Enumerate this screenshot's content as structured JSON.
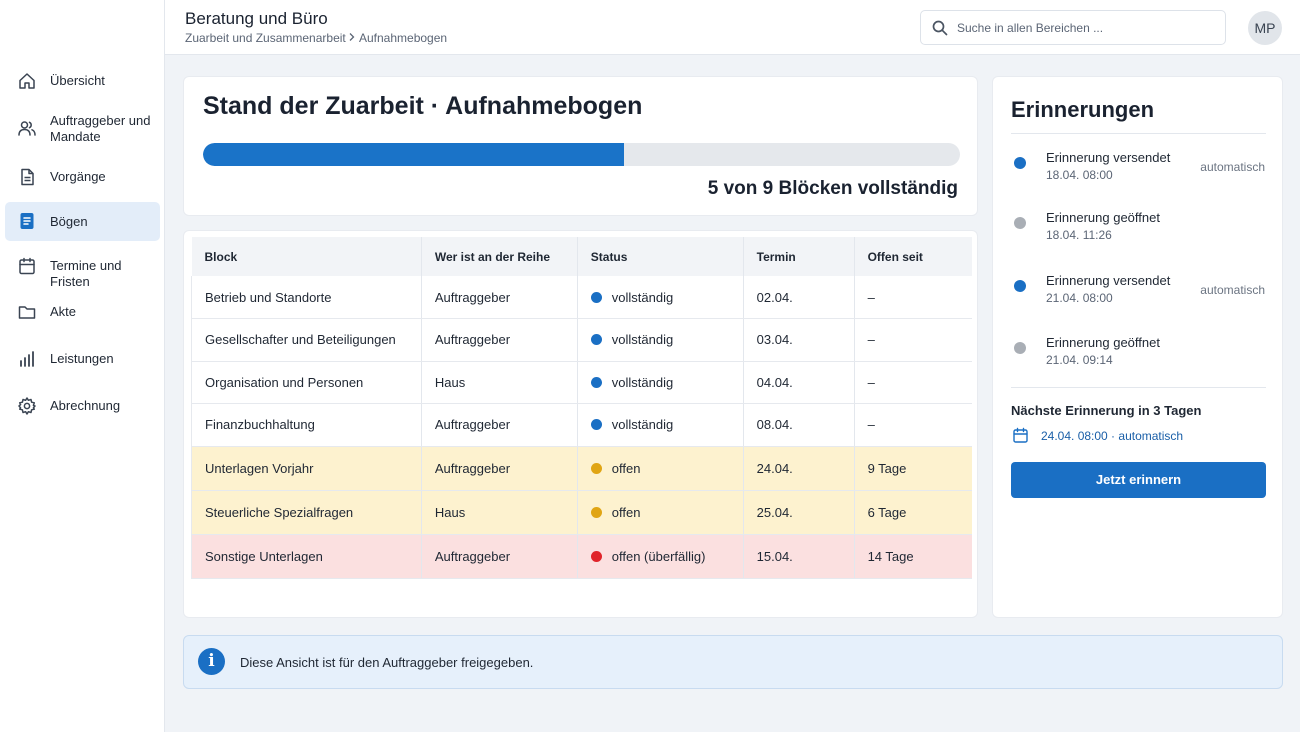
{
  "app": {
    "title": "Beratung und Büro",
    "breadcrumb": [
      "Zuarbeit und Zusammenarbeit",
      "Aufnahmebogen"
    ]
  },
  "search": {
    "placeholder": "Suche in allen Bereichen ..."
  },
  "user": {
    "initials": "MP"
  },
  "sidebar": {
    "items": [
      {
        "label": "Übersicht",
        "icon": "home-icon",
        "active": false
      },
      {
        "label": "Auftraggeber und Mandate",
        "icon": "users-icon",
        "active": false
      },
      {
        "label": "Vorgänge",
        "icon": "document-icon",
        "active": false
      },
      {
        "label": "Bögen",
        "icon": "form-icon",
        "active": true
      },
      {
        "label": "Termine und Fristen",
        "icon": "calendar-icon",
        "active": false
      },
      {
        "label": "Akte",
        "icon": "folder-icon",
        "active": false
      },
      {
        "label": "Leistungen",
        "icon": "bar-chart-icon",
        "active": false
      },
      {
        "label": "Abrechnung",
        "icon": "gear-icon",
        "active": false
      }
    ]
  },
  "progress": {
    "title": "Stand der Zuarbeit · Aufnahmebogen",
    "completed": 5,
    "total": 9,
    "summary": "5 von 9 Blöcken vollständig"
  },
  "table": {
    "headers": [
      "Block",
      "Wer ist an der Reihe",
      "Status",
      "Termin",
      "Offen seit"
    ],
    "rows": [
      {
        "block": "Betrieb und Standorte",
        "who": "Auftraggeber",
        "status": "vollständig",
        "state": "done",
        "termin": "02.04.",
        "open_since": "–"
      },
      {
        "block": "Gesellschafter und Beteiligungen",
        "who": "Auftraggeber",
        "status": "vollständig",
        "state": "done",
        "termin": "03.04.",
        "open_since": "–"
      },
      {
        "block": "Organisation und Personen",
        "who": "Haus",
        "status": "vollständig",
        "state": "done",
        "termin": "04.04.",
        "open_since": "–"
      },
      {
        "block": "Finanzbuchhaltung",
        "who": "Auftraggeber",
        "status": "vollständig",
        "state": "done",
        "termin": "08.04.",
        "open_since": "–"
      },
      {
        "block": "Unterlagen Vorjahr",
        "who": "Auftraggeber",
        "status": "offen",
        "state": "open",
        "termin": "24.04.",
        "open_since": "9 Tage"
      },
      {
        "block": "Steuerliche Spezialfragen",
        "who": "Haus",
        "status": "offen",
        "state": "open",
        "termin": "25.04.",
        "open_since": "6 Tage"
      },
      {
        "block": "Sonstige Unterlagen",
        "who": "Auftraggeber",
        "status": "offen (überfällig)",
        "state": "late",
        "termin": "15.04.",
        "open_since": "14 Tage"
      }
    ]
  },
  "reminders": {
    "title": "Erinnerungen",
    "items": [
      {
        "title": "Erinnerung versendet",
        "date": "18.04. 08:00",
        "mode": "automatisch",
        "kind": "sent"
      },
      {
        "title": "Erinnerung geöffnet",
        "date": "18.04. 11:26",
        "mode": "",
        "kind": "opened"
      },
      {
        "title": "Erinnerung versendet",
        "date": "21.04. 08:00",
        "mode": "automatisch",
        "kind": "sent"
      },
      {
        "title": "Erinnerung geöffnet",
        "date": "21.04. 09:14",
        "mode": "",
        "kind": "opened"
      }
    ],
    "next_label": "Nächste Erinnerung in 3 Tagen",
    "next_value": "24.04. 08:00 · automatisch",
    "button": "Jetzt erinnern"
  },
  "info": {
    "text": "Diese Ansicht ist für den Auftraggeber freigegeben."
  },
  "colors": {
    "accent": "#1a6fc4",
    "done": "#1a6fc4",
    "open": "#e0a514",
    "late": "#e0242a",
    "opened_dot": "#a9aeb5"
  }
}
